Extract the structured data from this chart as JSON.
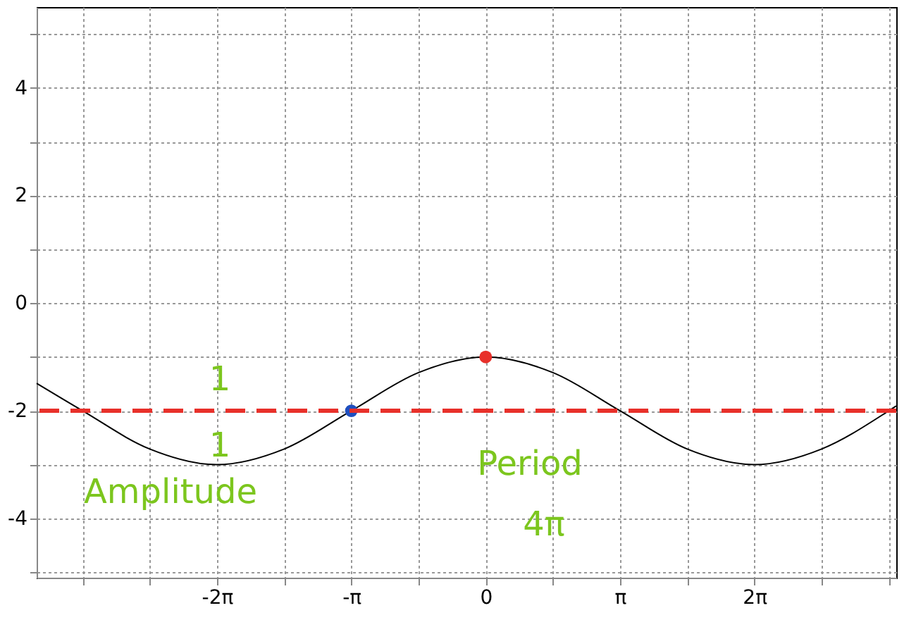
{
  "chart_data": {
    "type": "line",
    "series": [
      {
        "type": "line",
        "color": "#000000",
        "x": [
          -10.5,
          -9.425,
          -7.854,
          -6.283,
          -4.712,
          -3.142,
          -1.571,
          0,
          1.571,
          3.142,
          4.712,
          6.283,
          7.854,
          9.425,
          9.6
        ],
        "values": [
          -1.49,
          -2,
          -2.71,
          -3,
          -2.71,
          -2,
          -1.29,
          -1,
          -1.29,
          -2,
          -2.71,
          -3,
          -2.71,
          -2,
          -1.91
        ]
      },
      {
        "type": "scatter",
        "color": "#e8302a",
        "x": [
          0
        ],
        "values": [
          -1
        ]
      },
      {
        "type": "scatter",
        "color": "#1f4fbf",
        "x": [
          -3.142
        ],
        "values": [
          -2
        ]
      }
    ],
    "xlim": [
      -10.5,
      9.6
    ],
    "ylim": [
      -5.1,
      5.5
    ],
    "xticks": [
      {
        "value": -9.425,
        "label": null
      },
      {
        "value": -7.854,
        "label": null
      },
      {
        "value": -6.283,
        "label": "-2π"
      },
      {
        "value": -4.712,
        "label": null
      },
      {
        "value": -3.142,
        "label": "-π"
      },
      {
        "value": -1.571,
        "label": null
      },
      {
        "value": 0,
        "label": "0"
      },
      {
        "value": 1.571,
        "label": null
      },
      {
        "value": 3.142,
        "label": "π"
      },
      {
        "value": 4.712,
        "label": null
      },
      {
        "value": 6.283,
        "label": "2π"
      },
      {
        "value": 7.854,
        "label": null
      },
      {
        "value": 9.425,
        "label": null
      }
    ],
    "yticks": [
      {
        "value": -5,
        "label": null
      },
      -4,
      {
        "value": -3,
        "label": null
      },
      -2,
      {
        "value": -1,
        "label": null
      },
      0,
      {
        "value": 1,
        "label": null
      },
      2,
      {
        "value": 3,
        "label": null
      },
      4,
      {
        "value": 5,
        "label": null
      }
    ],
    "grid": true,
    "ref_lines": [
      {
        "axis": "y",
        "value": -2,
        "color": "#e8302a",
        "line_style": "dashed"
      }
    ],
    "annotations": [
      "1",
      "1",
      "Amplitude",
      "Period",
      "4π"
    ]
  }
}
